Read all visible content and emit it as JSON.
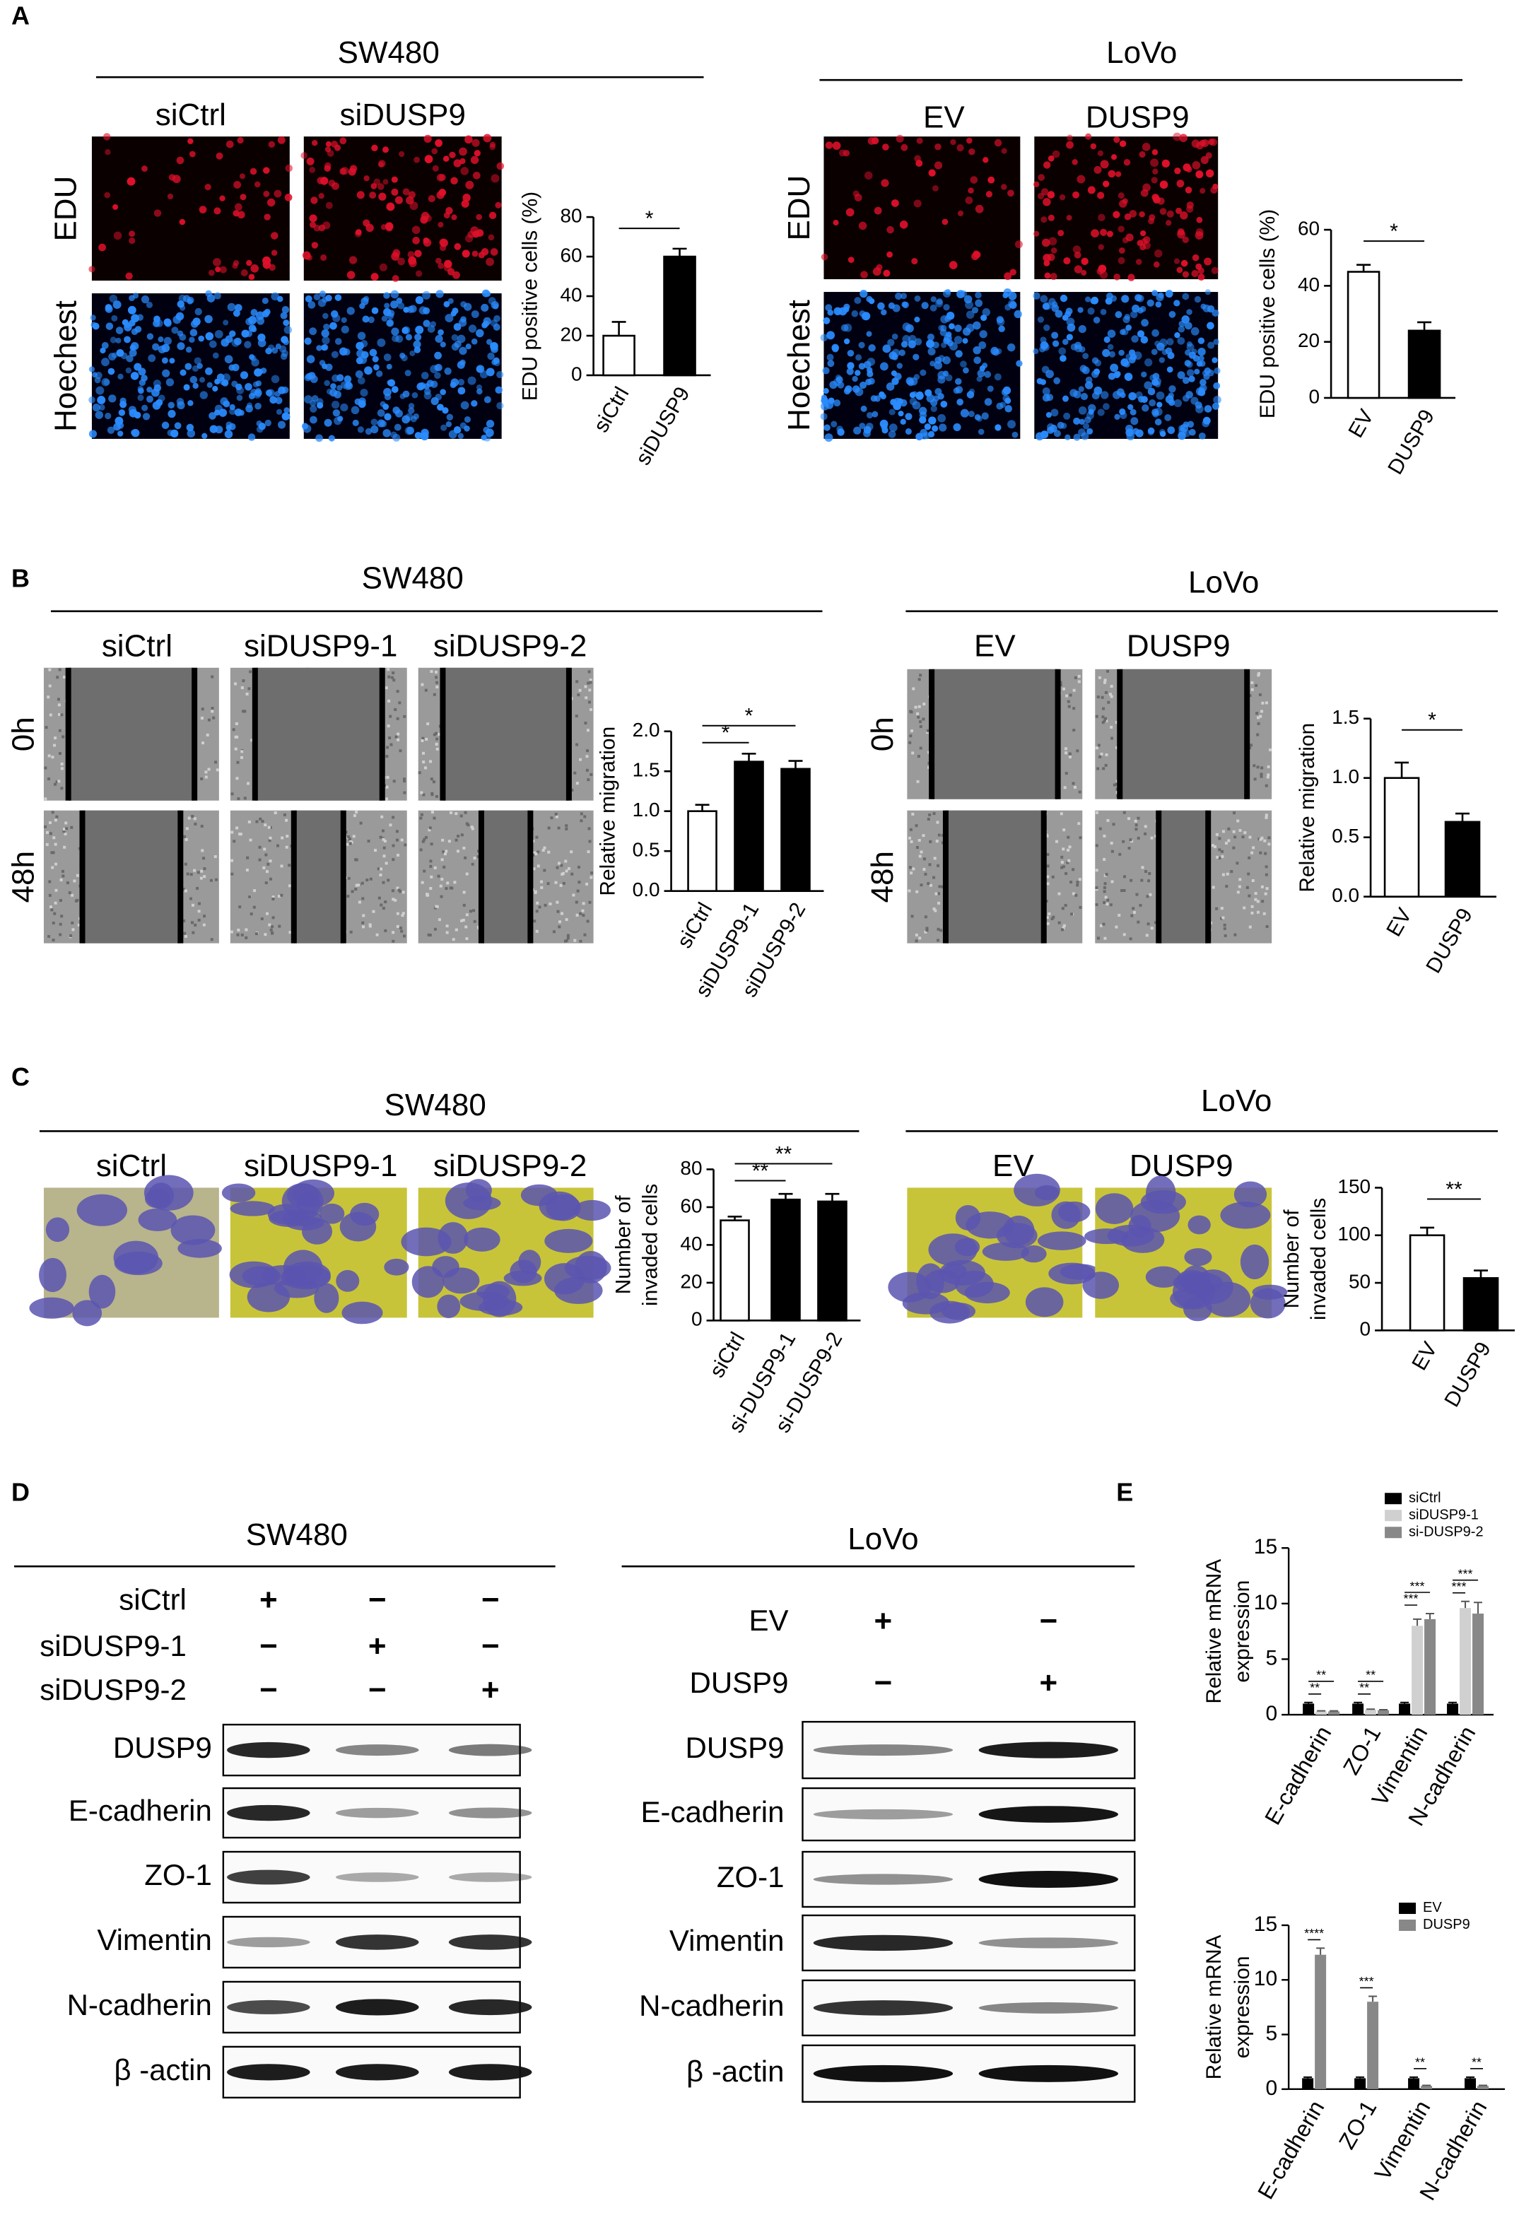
{
  "panels": [
    {
      "label": "A",
      "groups": [
        {
          "title": "SW480",
          "columns": [
            "siCtrl",
            "siDUSP9"
          ],
          "rows": [
            "EDU",
            "Hoechest"
          ],
          "chart": {
            "type": "bar",
            "ylabel": [
              "EDU positive cells (%)"
            ],
            "categories": [
              "siCtrl",
              "siDUSP9"
            ],
            "values": [
              20,
              60
            ],
            "errors": [
              7,
              4
            ],
            "colors": [
              "#ffffff",
              "#000000"
            ],
            "ylim": [
              0,
              80
            ],
            "yticks": [
              0,
              20,
              40,
              60,
              80
            ],
            "significance": [
              "*"
            ]
          }
        },
        {
          "title": "LoVo",
          "columns": [
            "EV",
            "DUSP9"
          ],
          "rows": [
            "EDU",
            "Hoechest"
          ],
          "chart": {
            "type": "bar",
            "ylabel": [
              "EDU positive cells (%)"
            ],
            "categories": [
              "EV",
              "DUSP9"
            ],
            "values": [
              45,
              24
            ],
            "errors": [
              2.5,
              3
            ],
            "colors": [
              "#ffffff",
              "#000000"
            ],
            "ylim": [
              0,
              60
            ],
            "yticks": [
              0,
              20,
              40,
              60
            ],
            "significance": [
              "*"
            ]
          }
        }
      ]
    },
    {
      "label": "B",
      "groups": [
        {
          "title": "SW480",
          "columns": [
            "siCtrl",
            "siDUSP9-1",
            "siDUSP9-2"
          ],
          "rows": [
            "0h",
            "48h"
          ],
          "chart": {
            "type": "bar",
            "ylabel": [
              "Relative migration"
            ],
            "categories": [
              "siCtrl",
              "siDUSP9-1",
              "siDUSP9-2"
            ],
            "values": [
              1.0,
              1.62,
              1.53
            ],
            "errors": [
              0.08,
              0.1,
              0.1
            ],
            "colors": [
              "#ffffff",
              "#000000",
              "#000000"
            ],
            "ylim": [
              0,
              2
            ],
            "yticks": [
              {
                "value": 0,
                "label": "0.0"
              },
              0.5,
              {
                "value": 1,
                "label": "1.0"
              },
              1.5,
              {
                "value": 2,
                "label": "2.0"
              }
            ],
            "significance": [
              "*",
              "*"
            ]
          }
        },
        {
          "title": "LoVo",
          "columns": [
            "EV",
            "DUSP9"
          ],
          "rows": [
            "0h",
            "48h"
          ],
          "chart": {
            "type": "bar",
            "ylabel": [
              "Relative migration"
            ],
            "categories": [
              "EV",
              "DUSP9"
            ],
            "values": [
              1.0,
              0.63
            ],
            "errors": [
              0.13,
              0.07
            ],
            "colors": [
              "#ffffff",
              "#000000"
            ],
            "ylim": [
              0,
              1.5
            ],
            "yticks": [
              {
                "value": 0,
                "label": "0.0"
              },
              0.5,
              {
                "value": 1,
                "label": "1.0"
              },
              1.5
            ],
            "significance": [
              "*"
            ]
          }
        }
      ]
    },
    {
      "label": "C",
      "groups": [
        {
          "title": "SW480",
          "columns": [
            "siCtrl",
            "siDUSP9-1",
            "siDUSP9-2"
          ],
          "chart": {
            "type": "bar",
            "ylabel": [
              "Number of",
              "invaded cells"
            ],
            "categories": [
              "siCtrl",
              "si-DUSP9-1",
              "si-DUSP9-2"
            ],
            "values": [
              53,
              64,
              63
            ],
            "errors": [
              2,
              3,
              4
            ],
            "colors": [
              "#ffffff",
              "#000000",
              "#000000"
            ],
            "ylim": [
              0,
              80
            ],
            "yticks": [
              0,
              20,
              40,
              60,
              80
            ],
            "significance": [
              "**",
              "**"
            ]
          }
        },
        {
          "title": "LoVo",
          "columns": [
            "EV",
            "DUSP9"
          ],
          "chart": {
            "type": "bar",
            "ylabel": [
              "Number of",
              "invaded cells"
            ],
            "categories": [
              "EV",
              "DUSP9"
            ],
            "values": [
              100,
              55
            ],
            "errors": [
              8,
              8
            ],
            "colors": [
              "#ffffff",
              "#000000"
            ],
            "ylim": [
              0,
              150
            ],
            "yticks": [
              0,
              50,
              100,
              150
            ],
            "significance": [
              "**"
            ]
          }
        }
      ]
    },
    {
      "label": "D",
      "groups": [
        {
          "title": "SW480",
          "conditions": [
            {
              "name": "siCtrl",
              "signs": [
                "+",
                "−",
                "−"
              ]
            },
            {
              "name": "siDUSP9-1",
              "signs": [
                "−",
                "+",
                "−"
              ]
            },
            {
              "name": "siDUSP9-2",
              "signs": [
                "−",
                "−",
                "+"
              ]
            }
          ],
          "proteins": [
            "DUSP9",
            "E-cadherin",
            "ZO-1",
            "Vimentin",
            "N-cadherin",
            "β -actin"
          ]
        },
        {
          "title": "LoVo",
          "conditions": [
            {
              "name": "EV",
              "signs": [
                "+",
                "−"
              ]
            },
            {
              "name": "DUSP9",
              "signs": [
                "−",
                "+"
              ]
            }
          ],
          "proteins": [
            "DUSP9",
            "E-cadherin",
            "ZO-1",
            "Vimentin",
            "N-cadherin",
            "β -actin"
          ]
        }
      ]
    },
    {
      "label": "E",
      "charts": [
        {
          "type": "grouped_bar",
          "ylabel": [
            "Relative mRNA",
            "expression"
          ],
          "categories": [
            "E-cadherin",
            "ZO-1",
            "Vimentin",
            "N-cadherin"
          ],
          "series": [
            {
              "name": "siCtrl",
              "color": "#000000",
              "values": [
                1,
                1,
                1,
                1
              ],
              "errors": [
                0.1,
                0.1,
                0.1,
                0.1
              ]
            },
            {
              "name": "siDUSP9-1",
              "color": "#d0d0d0",
              "values": [
                0.3,
                0.45,
                8,
                9.6
              ],
              "errors": [
                0.05,
                0.05,
                0.6,
                0.6
              ]
            },
            {
              "name": "si-DUSP9-2",
              "color": "#888888",
              "values": [
                0.3,
                0.4,
                8.6,
                9.1
              ],
              "errors": [
                0.05,
                0.05,
                0.5,
                1
              ]
            }
          ],
          "ylim": [
            0,
            15
          ],
          "yticks": [
            0,
            5,
            10,
            15
          ],
          "significance": [
            [
              "**",
              "**"
            ],
            [
              "**",
              "**"
            ],
            [
              "***",
              "***"
            ],
            [
              "***",
              "***"
            ]
          ]
        },
        {
          "type": "grouped_bar",
          "ylabel": [
            "Relative mRNA",
            "expression"
          ],
          "categories": [
            "E-cadherin",
            "ZO-1",
            "Vimentin",
            "N-cadherin"
          ],
          "series": [
            {
              "name": "EV",
              "color": "#000000",
              "values": [
                1,
                1,
                1,
                1
              ],
              "errors": [
                0.1,
                0.1,
                0.1,
                0.1
              ]
            },
            {
              "name": "DUSP9",
              "color": "#888888",
              "values": [
                12.3,
                8,
                0.3,
                0.3
              ],
              "errors": [
                0.6,
                0.5,
                0.05,
                0.05
              ]
            }
          ],
          "ylim": [
            0,
            15
          ],
          "yticks": [
            0,
            5,
            10,
            15
          ],
          "significance": [
            [
              "****"
            ],
            [
              "***"
            ],
            [
              "**"
            ],
            [
              "**"
            ]
          ]
        }
      ]
    }
  ]
}
